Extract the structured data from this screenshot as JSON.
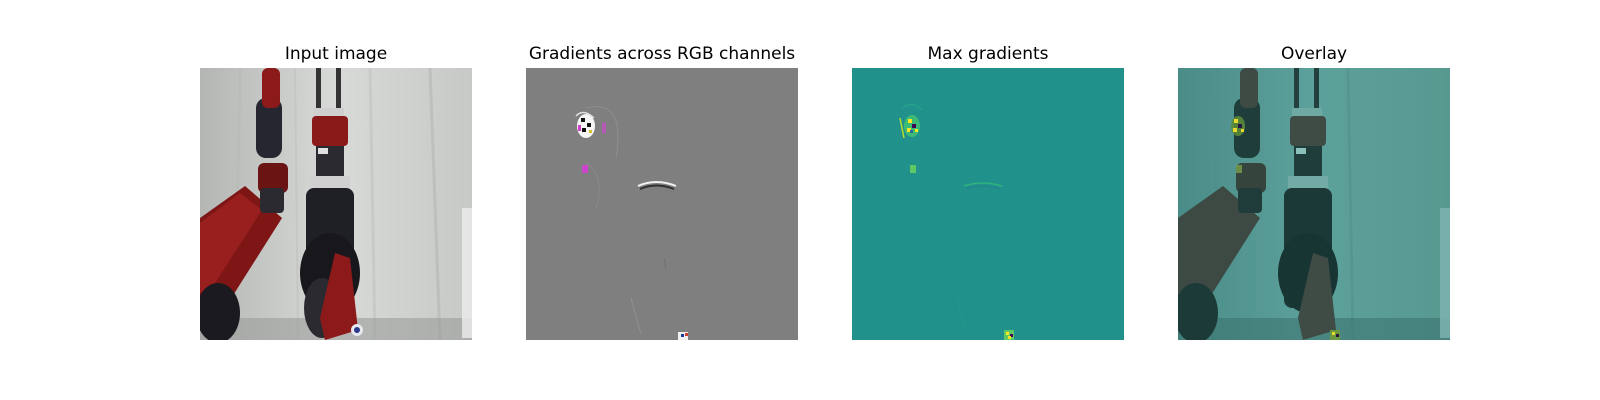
{
  "figure": {
    "panels": [
      {
        "title": "Input image"
      },
      {
        "title": "Gradients across RGB channels"
      },
      {
        "title": "Max gradients"
      },
      {
        "title": "Overlay"
      }
    ]
  },
  "colors": {
    "page_background": "#ffffff",
    "curtain_light": "#d6d8d6",
    "curtain_dark": "#a8aaa8",
    "robot_red": "#8e1a1a",
    "robot_black": "#1e1e24",
    "gradient_gray": "#7f7f7f",
    "viridis_mid": "#21918c",
    "viridis_high": "#fde725",
    "viridis_low": "#440154",
    "overlay_tint": "#2a9d96"
  }
}
